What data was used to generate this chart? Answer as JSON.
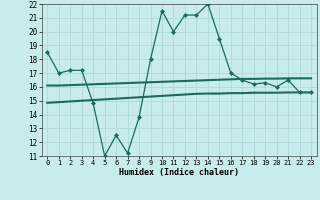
{
  "x": [
    0,
    1,
    2,
    3,
    4,
    5,
    6,
    7,
    8,
    9,
    10,
    11,
    12,
    13,
    14,
    15,
    16,
    17,
    18,
    19,
    20,
    21,
    22,
    23
  ],
  "line1": [
    18.5,
    17.0,
    17.2,
    17.2,
    14.8,
    11.0,
    12.5,
    11.2,
    13.8,
    18.0,
    21.5,
    20.0,
    21.2,
    21.2,
    22.0,
    19.5,
    17.0,
    16.5,
    16.2,
    16.3,
    16.0,
    16.5,
    15.6,
    15.6
  ],
  "line2": [
    16.1,
    16.1,
    16.13,
    16.16,
    16.19,
    16.22,
    16.25,
    16.28,
    16.31,
    16.34,
    16.37,
    16.4,
    16.43,
    16.46,
    16.49,
    16.52,
    16.55,
    16.58,
    16.58,
    16.6,
    16.6,
    16.62,
    16.62,
    16.62
  ],
  "line3": [
    14.85,
    14.9,
    14.95,
    15.0,
    15.05,
    15.1,
    15.15,
    15.2,
    15.25,
    15.3,
    15.35,
    15.4,
    15.45,
    15.5,
    15.52,
    15.52,
    15.55,
    15.55,
    15.58,
    15.58,
    15.58,
    15.6,
    15.6,
    15.6
  ],
  "line_color": "#1a6b5a",
  "bg_color": "#c8ecec",
  "grid_color": "#b0d8d8",
  "xlabel": "Humidex (Indice chaleur)",
  "ylim": [
    11,
    22
  ],
  "xlim": [
    -0.5,
    23.5
  ],
  "yticks": [
    11,
    12,
    13,
    14,
    15,
    16,
    17,
    18,
    19,
    20,
    21,
    22
  ],
  "xticks": [
    0,
    1,
    2,
    3,
    4,
    5,
    6,
    7,
    8,
    9,
    10,
    11,
    12,
    13,
    14,
    15,
    16,
    17,
    18,
    19,
    20,
    21,
    22,
    23
  ]
}
